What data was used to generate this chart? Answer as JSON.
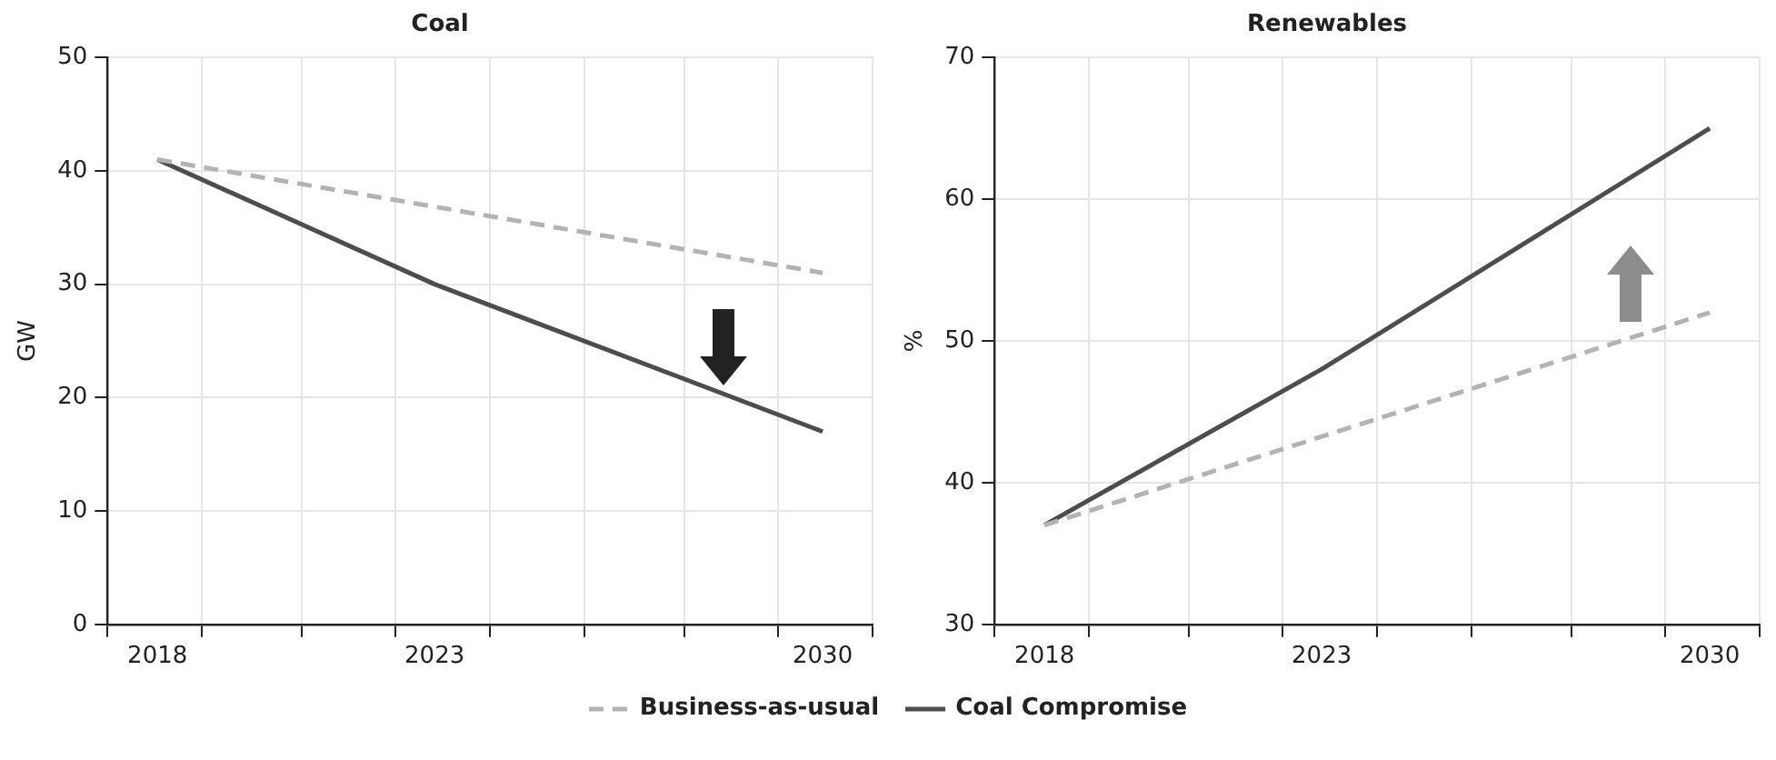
{
  "chart_data": [
    {
      "type": "line",
      "title": "Coal",
      "ylabel": "GW",
      "xlim": [
        2017.1,
        2030.9
      ],
      "xticks": [
        {
          "value": 2017.1,
          "label": null
        },
        2018,
        {
          "value": 2018.8,
          "label": null
        },
        {
          "value": 2020.6,
          "label": null
        },
        {
          "value": 2022.3,
          "label": null
        },
        2023,
        {
          "value": 2024.0,
          "label": null
        },
        {
          "value": 2025.7,
          "label": null
        },
        {
          "value": 2027.5,
          "label": null
        },
        {
          "value": 2029.2,
          "label": null
        },
        2030,
        {
          "value": 2030.9,
          "label": null
        }
      ],
      "ylim": [
        0,
        50
      ],
      "yticks": [
        0,
        10,
        20,
        30,
        40,
        50
      ],
      "grid": true,
      "legend": "bottom",
      "marker": "none",
      "series": [
        {
          "name": "Business-as-usual",
          "color": "#b3b3b3",
          "line_style": "dashed",
          "x": [
            2018,
            2030
          ],
          "values": [
            41,
            31
          ]
        },
        {
          "name": "Coal Compromise",
          "color": "#4d4d4d",
          "line_style": "solid",
          "x": [
            2018,
            2023,
            2030
          ],
          "values": [
            41,
            30,
            17
          ]
        }
      ]
    },
    {
      "type": "line",
      "title": "Renewables",
      "ylabel": "%",
      "xlim": [
        2017.1,
        2030.9
      ],
      "xticks": [
        {
          "value": 2017.1,
          "label": null
        },
        2018,
        {
          "value": 2018.8,
          "label": null
        },
        {
          "value": 2020.6,
          "label": null
        },
        {
          "value": 2022.3,
          "label": null
        },
        2023,
        {
          "value": 2024.0,
          "label": null
        },
        {
          "value": 2025.7,
          "label": null
        },
        {
          "value": 2027.5,
          "label": null
        },
        {
          "value": 2029.2,
          "label": null
        },
        2030,
        {
          "value": 2030.9,
          "label": null
        }
      ],
      "ylim": [
        30,
        70
      ],
      "yticks": [
        30,
        40,
        50,
        60,
        70
      ],
      "grid": true,
      "marker": "none",
      "series": [
        {
          "color": "#b3b3b3",
          "line_style": "dashed",
          "x": [
            2018,
            2030
          ],
          "values": [
            37,
            52
          ]
        },
        {
          "color": "#4d4d4d",
          "line_style": "solid",
          "x": [
            2018,
            2023,
            2030
          ],
          "values": [
            37,
            48,
            65
          ]
        }
      ]
    }
  ]
}
